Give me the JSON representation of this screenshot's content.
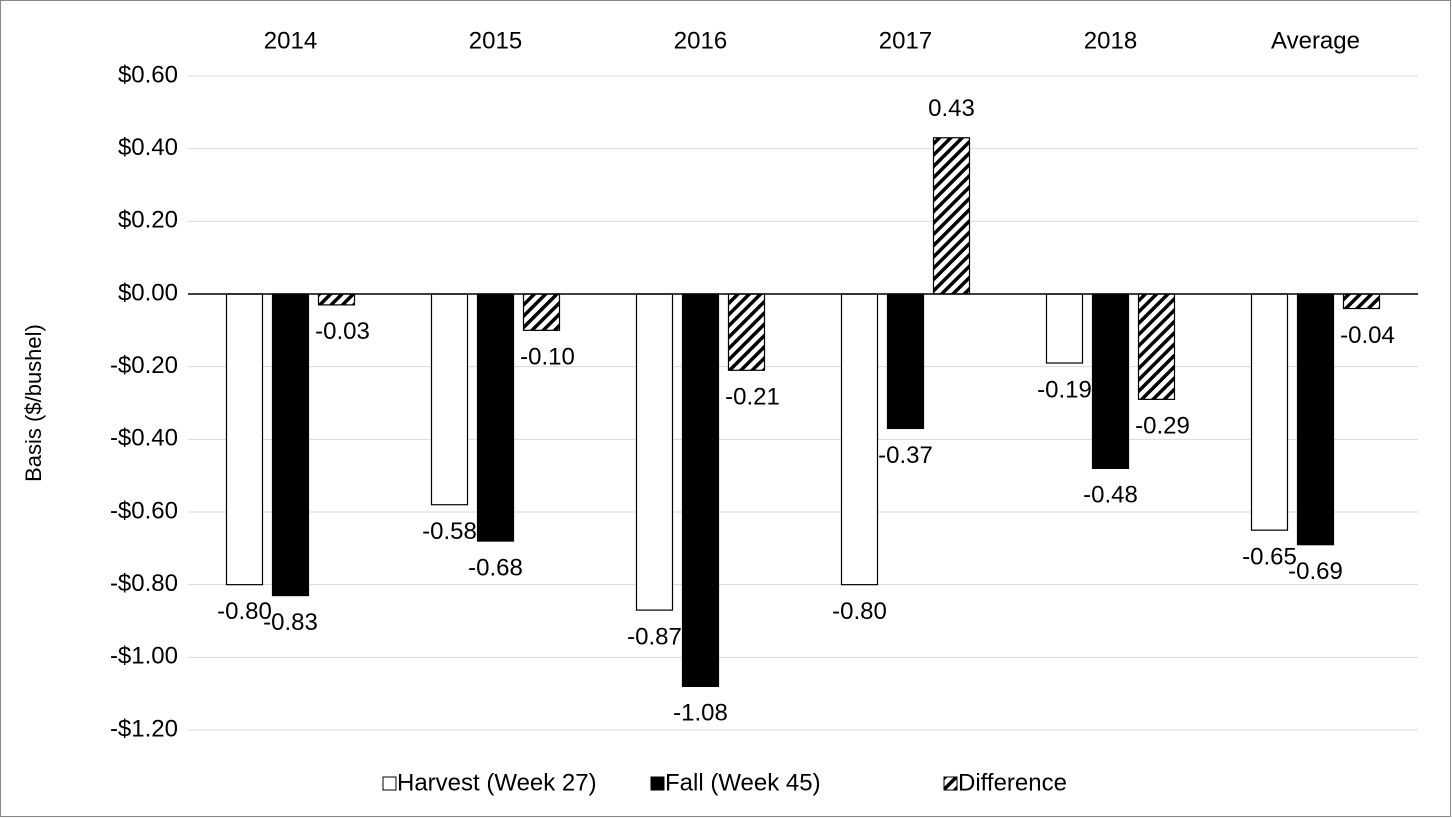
{
  "chart_data": {
    "type": "bar",
    "y_axis_label": "Basis ($/bushel)",
    "categories": [
      "2014",
      "2015",
      "2016",
      "2017",
      "2018",
      "Average"
    ],
    "series": [
      {
        "name": "Harvest (Week 27)",
        "color": "#ffffff",
        "pattern": "solid",
        "values": [
          -0.8,
          -0.58,
          -0.87,
          -0.8,
          -0.19,
          -0.65
        ],
        "value_labels": [
          "-0.80",
          "-0.58",
          "-0.87",
          "-0.80",
          "-0.19",
          "-0.65"
        ]
      },
      {
        "name": "Fall (Week 45)",
        "color": "#000000",
        "pattern": "solid",
        "values": [
          -0.83,
          -0.68,
          -1.08,
          -0.37,
          -0.48,
          -0.69
        ],
        "value_labels": [
          "-0.83",
          "-0.68",
          "-1.08",
          "-0.37",
          "-0.48",
          "-0.69"
        ]
      },
      {
        "name": "Difference",
        "color": "#000000",
        "pattern": "hatch",
        "values": [
          -0.03,
          -0.1,
          -0.21,
          0.43,
          -0.29,
          -0.04
        ],
        "value_labels": [
          "-0.03",
          "-0.10",
          "-0.21",
          "0.43",
          "-0.29",
          "-0.04"
        ]
      }
    ],
    "ylim": [
      -1.2,
      0.6
    ],
    "yticks": [
      {
        "value": -1.2,
        "label": "-$1.20"
      },
      {
        "value": -1.0,
        "label": "-$1.00"
      },
      {
        "value": -0.8,
        "label": "-$0.80"
      },
      {
        "value": -0.6,
        "label": "-$0.60"
      },
      {
        "value": -0.4,
        "label": "-$0.40"
      },
      {
        "value": -0.2,
        "label": "-$0.20"
      },
      {
        "value": 0,
        "label": "$0.00"
      },
      {
        "value": 0.2,
        "label": "$0.20"
      },
      {
        "value": 0.4,
        "label": "$0.40"
      },
      {
        "value": 0.6,
        "label": "$0.60"
      }
    ],
    "grid": true,
    "legend": "bottom"
  }
}
